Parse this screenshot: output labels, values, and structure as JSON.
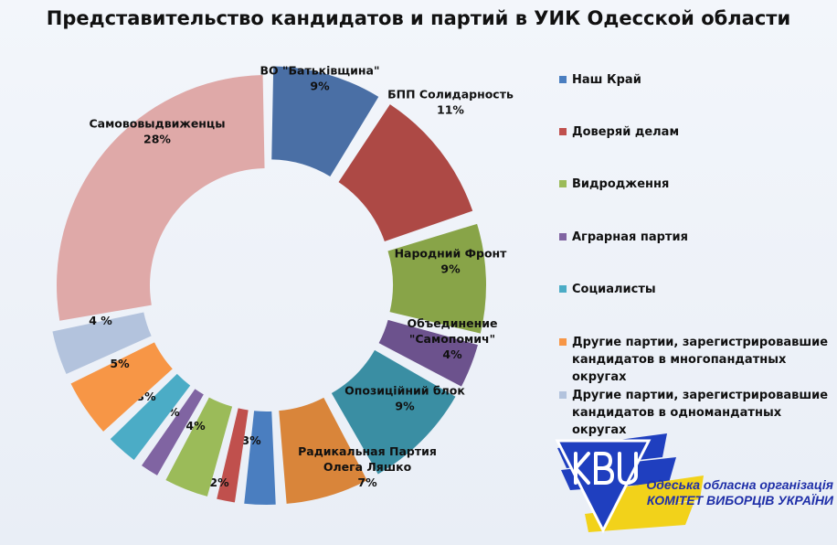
{
  "title": "Представительство кандидатов и партий в УИК Одесской области",
  "chart_data": {
    "type": "donut",
    "title": "Представительство кандидатов и партий в УИК Одесской области",
    "slices": [
      {
        "name": "ВО \"Батьківщина\"",
        "value": 9,
        "label": "9%",
        "color": "#4a6fa5",
        "exploded": true
      },
      {
        "name": "БПП Солидарность",
        "value": 11,
        "label": "11%",
        "color": "#ad4945",
        "exploded": true
      },
      {
        "name": "Народний Фронт",
        "value": 9,
        "label": "9%",
        "color": "#88a448",
        "exploded": true
      },
      {
        "name": "Объединение \"Самопомич\"",
        "value": 4,
        "label": "4%",
        "color": "#6c528d",
        "exploded": true
      },
      {
        "name": "Опозиційний блок",
        "value": 9,
        "label": "9%",
        "color": "#3a8ea3",
        "exploded": true
      },
      {
        "name": "Радикальная Партия Олега Ляшко",
        "value": 7,
        "label": "7%",
        "color": "#d9853a",
        "exploded": true
      },
      {
        "name": "",
        "value": 3,
        "label": "3%",
        "color": "#4a7ec0",
        "exploded": true
      },
      {
        "name": "",
        "value": 2,
        "label": "2%",
        "color": "#c0504d",
        "exploded": true
      },
      {
        "name": "",
        "value": 4,
        "label": "4%",
        "color": "#9bbb59",
        "exploded": true
      },
      {
        "name": "",
        "value": 2,
        "label": "2%",
        "color": "#8064a2",
        "exploded": true
      },
      {
        "name": "",
        "value": 3,
        "label": "3%",
        "color": "#4bacc6",
        "exploded": true
      },
      {
        "name": "",
        "value": 5,
        "label": "5%",
        "color": "#f79646",
        "exploded": true
      },
      {
        "name": "",
        "value": 4,
        "label": "4 %",
        "color": "#b3c3dd",
        "exploded": true
      },
      {
        "name": "Самововыдвиженцы",
        "value": 28,
        "label": "28%",
        "color": "#dfa9a8",
        "exploded": false
      }
    ],
    "legend": [
      {
        "label": "Наш Край",
        "color": "#4a7ec0"
      },
      {
        "label": "Доверяй делам",
        "color": "#c0504d"
      },
      {
        "label": "Видродження",
        "color": "#9bbb59"
      },
      {
        "label": "Аграрная партия",
        "color": "#8064a2"
      },
      {
        "label": "Социалисты",
        "color": "#4bacc6"
      },
      {
        "label": "Другие партии, зарегистрировавшие кандидатов в многопандатных округах",
        "color": "#f79646"
      },
      {
        "label": "Другие партии, зарегистрировавшие кандидатов в одномандатных округах",
        "color": "#b3c3dd"
      }
    ],
    "legend_position": "right"
  },
  "logo": {
    "letters": "КВУ",
    "line1": "Одеська обласна організація",
    "line2": "КОМІТЕТ ВИБОРЦІВ УКРАЇНИ"
  }
}
